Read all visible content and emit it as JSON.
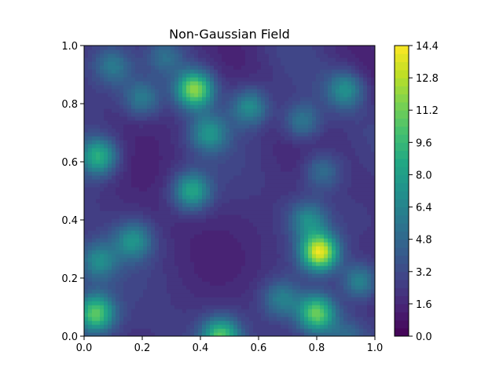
{
  "chart_data": {
    "type": "heatmap",
    "title": "Non-Gaussian Field",
    "xlabel": "",
    "ylabel": "",
    "xlim": [
      0.0,
      1.0
    ],
    "ylim": [
      0.0,
      1.0
    ],
    "x_ticks": [
      "0.0",
      "0.2",
      "0.4",
      "0.6",
      "0.8",
      "1.0"
    ],
    "y_ticks": [
      "0.0",
      "0.2",
      "0.4",
      "0.6",
      "0.8",
      "1.0"
    ],
    "colorbar": {
      "colormap": "viridis",
      "range": [
        0.0,
        14.4
      ],
      "ticks": [
        "0.0",
        "1.6",
        "3.2",
        "4.8",
        "6.4",
        "8.0",
        "9.6",
        "11.2",
        "12.8",
        "14.4"
      ]
    },
    "hotspots": [
      {
        "x": 0.81,
        "y": 0.29,
        "value": 13.8
      },
      {
        "x": 0.38,
        "y": 0.85,
        "value": 12.0
      },
      {
        "x": 0.8,
        "y": 0.08,
        "value": 11.0
      },
      {
        "x": 0.04,
        "y": 0.08,
        "value": 10.5
      },
      {
        "x": 0.47,
        "y": 0.0,
        "value": 10.0
      },
      {
        "x": 0.05,
        "y": 0.62,
        "value": 9.0
      },
      {
        "x": 0.37,
        "y": 0.5,
        "value": 8.5
      },
      {
        "x": 0.17,
        "y": 0.33,
        "value": 7.0
      },
      {
        "x": 0.05,
        "y": 0.26,
        "value": 6.5
      },
      {
        "x": 0.9,
        "y": 0.85,
        "value": 7.0
      },
      {
        "x": 0.77,
        "y": 0.4,
        "value": 6.5
      },
      {
        "x": 0.68,
        "y": 0.13,
        "value": 6.0
      },
      {
        "x": 0.95,
        "y": 0.19,
        "value": 7.0
      },
      {
        "x": 0.57,
        "y": 0.79,
        "value": 7.0
      },
      {
        "x": 0.43,
        "y": 0.7,
        "value": 7.0
      },
      {
        "x": 0.2,
        "y": 0.82,
        "value": 6.0
      },
      {
        "x": 0.75,
        "y": 0.74,
        "value": 6.0
      },
      {
        "x": 0.1,
        "y": 0.93,
        "value": 5.5
      },
      {
        "x": 0.28,
        "y": 0.96,
        "value": 5.0
      },
      {
        "x": 0.82,
        "y": 0.57,
        "value": 5.5
      },
      {
        "x": 0.9,
        "y": 0.0,
        "value": 4.5
      }
    ]
  }
}
